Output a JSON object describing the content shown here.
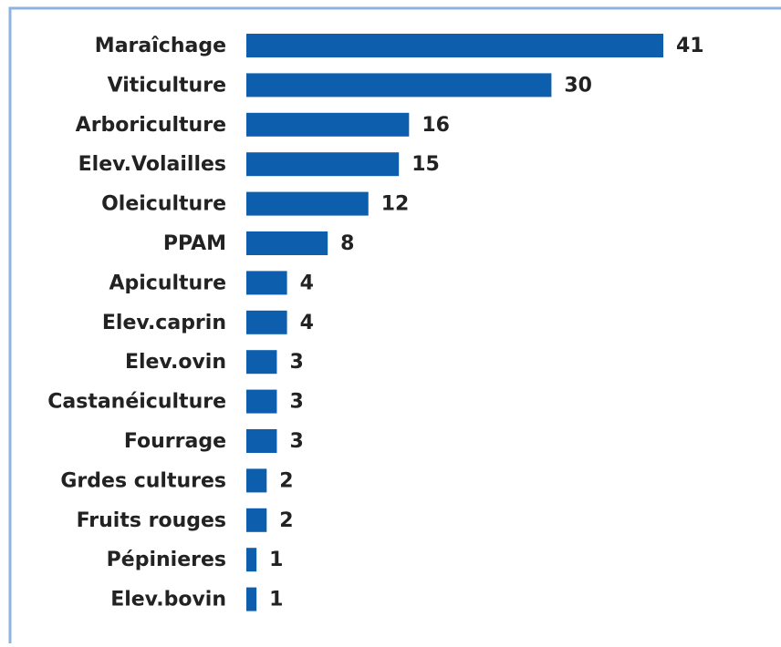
{
  "chart_data": {
    "type": "bar",
    "orientation": "horizontal",
    "categories": [
      "Maraîchage",
      "Viticulture",
      "Arboriculture",
      "Elev.Volailles",
      "Oleiculture",
      "PPAM",
      "Apiculture",
      "Elev.caprin",
      "Elev.ovin",
      "Castanéiculture",
      "Fourrage",
      "Grdes cultures",
      "Fruits rouges",
      "Pépinieres",
      "Elev.bovin"
    ],
    "values": [
      41,
      30,
      16,
      15,
      12,
      8,
      4,
      4,
      3,
      3,
      3,
      2,
      2,
      1,
      1
    ],
    "color": "#0d5fae"
  }
}
